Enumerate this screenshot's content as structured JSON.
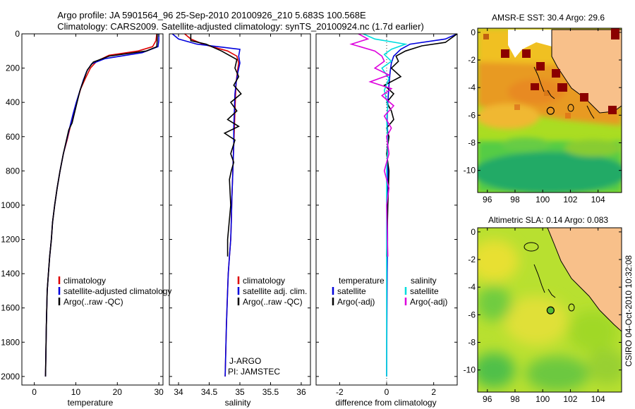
{
  "title": {
    "line1": "Argo profile: JA 5901564_96 25-Sep-2010 20100926_210 5.683S 100.568E",
    "line2": "Climatology: CARS2009. Satellite-adjusted climatology: synTS_20100924.nc (1.7d earlier)"
  },
  "side_label": "CSIRO 04-Oct-2010 10:32:08",
  "chart_data": [
    {
      "type": "line",
      "panel": "temperature",
      "xlabel": "temperature",
      "ylabel": "",
      "xlim": [
        -3,
        31
      ],
      "ylim": [
        2050,
        0
      ],
      "xticks": [
        0,
        10,
        20,
        30
      ],
      "yticks": [
        0,
        200,
        400,
        600,
        800,
        1000,
        1200,
        1400,
        1600,
        1800,
        2000
      ],
      "legend": {
        "items": [
          "climatology",
          "satellite-adjusted climatology",
          "Argo(..raw -QC)"
        ],
        "placement": "lower-center"
      },
      "series": [
        {
          "name": "climatology",
          "color": "#dd0000",
          "x": [
            29.5,
            29.3,
            28.5,
            25,
            18,
            15,
            13.5,
            12.3,
            11.2,
            10.2,
            9.4,
            8.6,
            7.9,
            7,
            6.2,
            5.5,
            4.9,
            4.4,
            4.1,
            3.7,
            3.4,
            3.1,
            2.9,
            2.7
          ],
          "y": [
            0,
            40,
            75,
            100,
            125,
            160,
            200,
            260,
            320,
            400,
            470,
            550,
            620,
            700,
            800,
            900,
            1000,
            1100,
            1200,
            1300,
            1400,
            1500,
            1700,
            2000
          ]
        },
        {
          "name": "satellite-adjusted climatology",
          "color": "#0000dd",
          "x": [
            30,
            30,
            29.8,
            26,
            17,
            13.8,
            12.6,
            11.8,
            11,
            10.1,
            9.3,
            8.5,
            7.8,
            7,
            6.2,
            5.5,
            4.9,
            4.4,
            4.1,
            3.7,
            3.4,
            3.1,
            2.9,
            2.7
          ],
          "y": [
            0,
            40,
            75,
            110,
            145,
            175,
            220,
            270,
            330,
            400,
            470,
            550,
            620,
            700,
            800,
            900,
            1000,
            1100,
            1200,
            1300,
            1400,
            1500,
            1700,
            2000
          ]
        },
        {
          "name": "Argo(..raw -QC)",
          "color": "#000000",
          "x": [
            29.6,
            29.6,
            29.5,
            27,
            18,
            14.2,
            12.8,
            11.9,
            11,
            10.3,
            9.6,
            9.1,
            8.3,
            7,
            6.2,
            5.5,
            4.9,
            4.4,
            4.1,
            3.7,
            3.4,
            3.1,
            2.9,
            2.7
          ],
          "y": [
            0,
            40,
            75,
            100,
            130,
            165,
            210,
            270,
            330,
            400,
            470,
            520,
            560,
            700,
            800,
            900,
            1000,
            1100,
            1200,
            1300,
            1400,
            1500,
            1700,
            2000
          ]
        }
      ]
    },
    {
      "type": "line",
      "panel": "salinity",
      "xlabel": "salinity",
      "xlim": [
        33.85,
        36.15
      ],
      "ylim": [
        2050,
        0
      ],
      "xticks": [
        34,
        34.5,
        35,
        35.5,
        36
      ],
      "legend": {
        "items": [
          "climatology",
          "satellite adj. clim.",
          "Argo(..raw -QC)"
        ],
        "placement": "lower-right"
      },
      "annotation": [
        "J-ARGO",
        "PI: JAMSTEC"
      ],
      "series": [
        {
          "name": "climatology",
          "color": "#dd0000",
          "x": [
            34.1,
            34.2,
            34.4,
            34.8,
            34.95,
            34.98,
            34.96,
            34.94,
            34.93,
            34.92,
            34.91,
            34.9,
            34.89,
            34.88,
            34.87,
            34.86,
            34.85,
            34.83,
            34.81,
            34.8,
            34.78,
            34.76
          ],
          "y": [
            0,
            30,
            60,
            100,
            130,
            170,
            220,
            280,
            350,
            450,
            550,
            650,
            750,
            850,
            950,
            1100,
            1200,
            1300,
            1400,
            1500,
            1700,
            2000
          ]
        },
        {
          "name": "satellite adj. clim.",
          "color": "#0000dd",
          "x": [
            33.9,
            34,
            34.3,
            35,
            34.98,
            35,
            34.97,
            34.94,
            34.92,
            34.91,
            34.9,
            34.9,
            34.89,
            34.88,
            34.87,
            34.86,
            34.85,
            34.83,
            34.81,
            34.8,
            34.78,
            34.76
          ],
          "y": [
            0,
            30,
            60,
            90,
            130,
            170,
            220,
            280,
            350,
            450,
            550,
            650,
            750,
            850,
            950,
            1100,
            1200,
            1300,
            1400,
            1500,
            1700,
            2000
          ]
        },
        {
          "name": "Argo(..raw -QC)",
          "color": "#000000",
          "x": [
            34.2,
            34.2,
            34.45,
            34.7,
            34.95,
            34.92,
            34.98,
            34.9,
            35.02,
            34.85,
            34.95,
            34.8,
            34.98,
            34.75,
            34.92,
            34.85,
            34.9,
            34.86,
            34.83,
            34.85,
            34.8,
            34.8
          ],
          "y": [
            0,
            40,
            60,
            100,
            150,
            200,
            250,
            300,
            350,
            400,
            450,
            500,
            540,
            580,
            620,
            700,
            750,
            800,
            850,
            1000,
            1200,
            1300
          ]
        }
      ]
    },
    {
      "type": "line",
      "panel": "difference",
      "xlabel": "difference from climatology",
      "xlim": [
        -3,
        3
      ],
      "ylim": [
        2050,
        0
      ],
      "xticks": [
        -2,
        0,
        2
      ],
      "legend": {
        "headers": [
          "temperature",
          "salinity"
        ],
        "items": [
          "satellite",
          "Argo(-adj)",
          "satellite",
          "Argo(-adj)"
        ],
        "placement": "lower-center"
      },
      "series": [
        {
          "name": "temperature satellite",
          "color": "#0000dd",
          "x": [
            3,
            2.5,
            1,
            0.6,
            0.3,
            0.2,
            0.15,
            0.1,
            0.05,
            0.02,
            0.05,
            0.02,
            0.05,
            0.05,
            0.03,
            0.04,
            0.02,
            0.01,
            0
          ],
          "y": [
            0,
            30,
            60,
            90,
            130,
            170,
            220,
            300,
            400,
            500,
            600,
            700,
            800,
            900,
            1000,
            1200,
            1400,
            1700,
            2000
          ]
        },
        {
          "name": "temperature Argo(-adj)",
          "color": "#000000",
          "x": [
            3,
            2.5,
            1.5,
            0.8,
            0.4,
            0.5,
            0.2,
            0.6,
            -0.1,
            0.3,
            0,
            0.2,
            0.3,
            0,
            0.1,
            0,
            0.1,
            0.05,
            0
          ],
          "y": [
            0,
            50,
            70,
            100,
            130,
            160,
            200,
            250,
            300,
            350,
            400,
            450,
            500,
            550,
            600,
            700,
            800,
            1000,
            1300
          ]
        },
        {
          "name": "salinity satellite",
          "color": "#00dddd",
          "x": [
            -1,
            -0.5,
            0.8,
            0.2,
            -0.1,
            0.2,
            -0.2,
            0.1,
            -0.1,
            0.05,
            0,
            0.05,
            0,
            0,
            0,
            0
          ],
          "y": [
            0,
            30,
            60,
            90,
            120,
            160,
            200,
            260,
            330,
            420,
            500,
            650,
            800,
            1000,
            1500,
            2000
          ]
        },
        {
          "name": "salinity Argo(-adj)",
          "color": "#dd00dd",
          "x": [
            -1.2,
            -0.8,
            -1.5,
            -0.5,
            -0.2,
            -0.1,
            -0.5,
            0.1,
            -0.7,
            0.2,
            -0.2,
            0.3,
            -0.1,
            0.2,
            0,
            0.1,
            -0.1,
            0.1,
            0,
            0.05
          ],
          "y": [
            0,
            30,
            60,
            100,
            130,
            160,
            200,
            240,
            280,
            320,
            360,
            420,
            480,
            550,
            600,
            700,
            800,
            900,
            1000,
            1300
          ]
        }
      ]
    },
    {
      "type": "heatmap",
      "panel": "sst-map",
      "title": "AMSR-E SST: 30.4 Argo: 29.6",
      "xlim": [
        95.3,
        105.7
      ],
      "ylim": [
        -11.6,
        0.3
      ],
      "xticks": [
        96,
        98,
        100,
        102,
        104
      ],
      "yticks": [
        0,
        -2,
        -4,
        -6,
        -8,
        -10
      ],
      "profile_location": {
        "lon": 100.568,
        "lat": -5.683
      }
    },
    {
      "type": "heatmap",
      "panel": "sla-map",
      "title": "Altimetric SLA: 0.14 Argo: 0.083",
      "xlim": [
        95.3,
        105.7
      ],
      "ylim": [
        -11.6,
        0.3
      ],
      "xticks": [
        96,
        98,
        100,
        102,
        104
      ],
      "yticks": [
        0,
        -2,
        -4,
        -6,
        -8,
        -10
      ],
      "profile_location": {
        "lon": 100.568,
        "lat": -5.683
      }
    }
  ]
}
